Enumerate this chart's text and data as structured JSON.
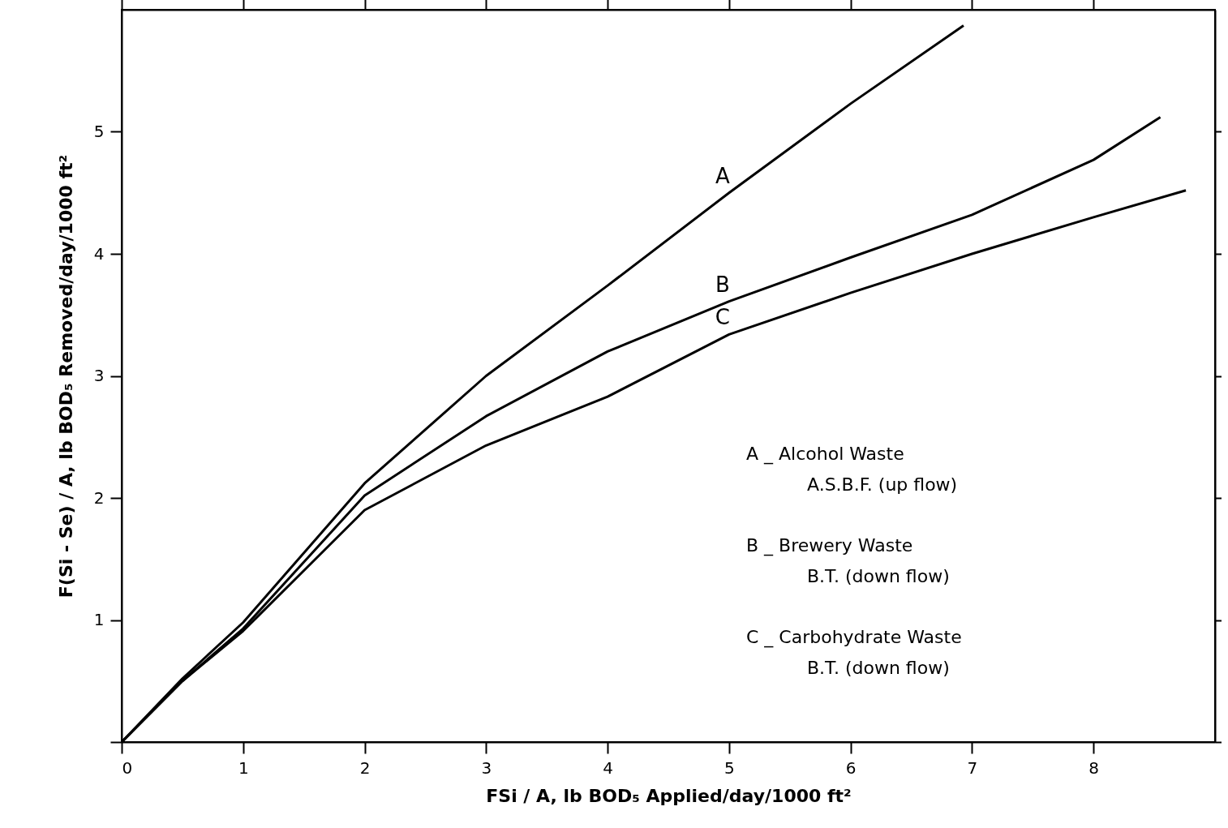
{
  "chart_data": {
    "type": "line",
    "xlabel": "FSi / A, lb BOD₅ Applied/day/1000 ft²",
    "ylabel": "F(Si - Se) / A, lb BOD₅ Removed/day/1000 ft²",
    "xlim": [
      0,
      9
    ],
    "ylim": [
      0,
      6
    ],
    "xticks": [
      0,
      1,
      2,
      3,
      4,
      5,
      6,
      7,
      8
    ],
    "yticks": [
      {
        "value": 0,
        "label": null
      },
      1,
      2,
      3,
      4,
      5
    ],
    "grid": false,
    "marker": "none",
    "line_style": "solid",
    "series": [
      {
        "name": "A",
        "color": "#000000",
        "x": [
          0,
          0.5,
          1,
          2,
          3,
          4,
          5,
          6,
          6.93
        ],
        "values": [
          0,
          0.52,
          0.98,
          2.12,
          3.0,
          3.74,
          4.5,
          5.23,
          5.87
        ]
      },
      {
        "name": "B",
        "color": "#000000",
        "x": [
          0,
          0.5,
          1,
          2,
          3,
          4,
          5,
          6,
          7,
          8,
          8.55
        ],
        "values": [
          0,
          0.5,
          0.93,
          2.02,
          2.67,
          3.2,
          3.61,
          3.97,
          4.32,
          4.77,
          5.12
        ]
      },
      {
        "name": "C",
        "color": "#000000",
        "x": [
          0,
          0.5,
          1,
          2,
          3,
          4,
          5,
          6,
          7,
          8,
          8.76
        ],
        "values": [
          0,
          0.5,
          0.91,
          1.9,
          2.43,
          2.83,
          3.34,
          3.68,
          4.0,
          4.3,
          4.52
        ]
      }
    ],
    "annotations": [
      "A _ Alcohol Waste",
      "A.S.B.F. (up flow)",
      "B _ Brewery Waste",
      "B.T. (down flow)",
      "C _ Carbohydrate Waste",
      "B.T. (down flow)"
    ]
  }
}
